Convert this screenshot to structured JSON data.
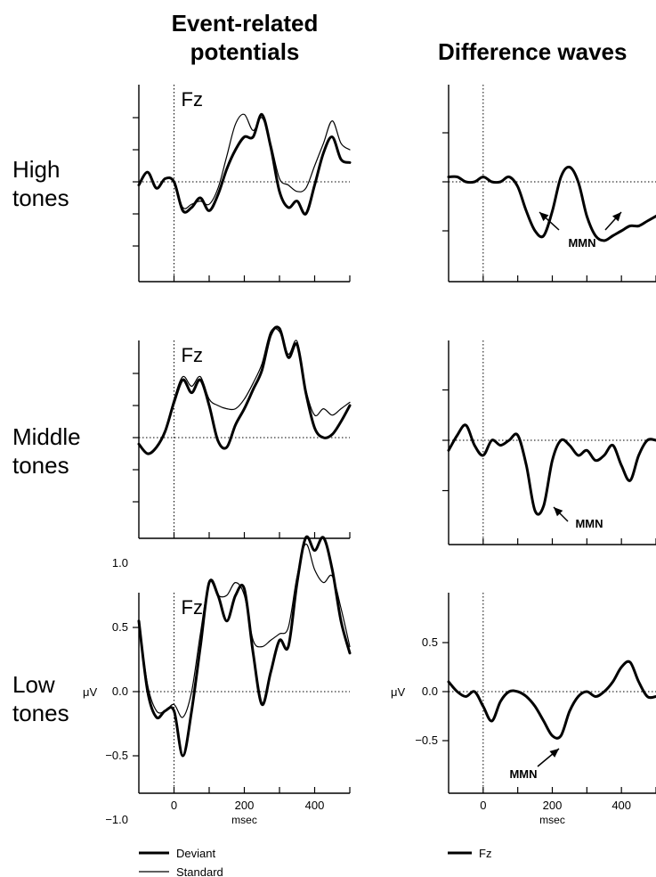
{
  "titles": {
    "erp_line1": "Event-related",
    "erp_line2": "potentials",
    "diff": "Difference waves"
  },
  "rows": [
    {
      "line1": "High",
      "line2": "tones"
    },
    {
      "line1": "Middle",
      "line2": "tones"
    },
    {
      "line1": "Low",
      "line2": "tones"
    }
  ],
  "electrode": "Fz",
  "mmn_label": "MMN",
  "axis": {
    "x_unit": "msec",
    "y_unit": "μV",
    "x_ticks": [
      "0",
      "200",
      "400"
    ],
    "erp_y_ticks": [
      "1.0",
      "0.5",
      "0.0",
      "−0.5",
      "−1.0"
    ],
    "diff_y_ticks": [
      "0.5",
      "0.0",
      "−0.5"
    ]
  },
  "legend": {
    "erp": [
      {
        "label": "Deviant",
        "style": "thick"
      },
      {
        "label": "Standard",
        "style": "thin"
      }
    ],
    "diff": [
      {
        "label": "Fz",
        "style": "thick"
      }
    ]
  },
  "chart_data": [
    {
      "type": "line",
      "panel": "High tones, event-related potentials",
      "electrode": "Fz",
      "xlabel": "",
      "ylabel": "",
      "xlim": [
        -100,
        500
      ],
      "series": [
        {
          "name": "Deviant",
          "style": "thick",
          "x": [
            -100,
            -75,
            -50,
            -25,
            0,
            25,
            50,
            75,
            100,
            125,
            150,
            175,
            200,
            225,
            250,
            275,
            300,
            325,
            350,
            375,
            400,
            425,
            450,
            475,
            500
          ],
          "y": [
            -0.05,
            0.15,
            -0.1,
            0.05,
            0.0,
            -0.45,
            -0.4,
            -0.25,
            -0.45,
            -0.2,
            0.2,
            0.5,
            0.7,
            0.7,
            1.05,
            0.55,
            -0.15,
            -0.4,
            -0.3,
            -0.5,
            -0.05,
            0.45,
            0.7,
            0.35,
            0.3
          ]
        },
        {
          "name": "Standard",
          "style": "thin",
          "x": [
            -100,
            -75,
            -50,
            -25,
            0,
            25,
            50,
            75,
            100,
            125,
            150,
            175,
            200,
            225,
            250,
            275,
            300,
            325,
            350,
            375,
            400,
            425,
            450,
            475,
            500
          ],
          "y": [
            -0.05,
            0.15,
            -0.1,
            0.05,
            0.0,
            -0.4,
            -0.35,
            -0.3,
            -0.35,
            -0.1,
            0.4,
            0.9,
            1.05,
            0.8,
            1.0,
            0.6,
            0.05,
            -0.05,
            -0.15,
            -0.1,
            0.25,
            0.6,
            0.95,
            0.6,
            0.5
          ]
        }
      ]
    },
    {
      "type": "line",
      "panel": "High tones, difference waves",
      "electrode": "Fz",
      "xlim": [
        -100,
        500
      ],
      "series": [
        {
          "name": "Fz",
          "style": "thick",
          "x": [
            -100,
            -75,
            -50,
            -25,
            0,
            25,
            50,
            75,
            100,
            125,
            150,
            175,
            200,
            225,
            250,
            275,
            300,
            325,
            350,
            375,
            400,
            425,
            450,
            475,
            500
          ],
          "y": [
            0.05,
            0.05,
            0.0,
            0.0,
            0.05,
            0.0,
            0.0,
            0.05,
            -0.05,
            -0.3,
            -0.5,
            -0.55,
            -0.3,
            0.05,
            0.15,
            0.0,
            -0.35,
            -0.55,
            -0.6,
            -0.55,
            -0.5,
            -0.45,
            -0.45,
            -0.4,
            -0.35
          ]
        }
      ],
      "annotations": [
        "MMN"
      ]
    },
    {
      "type": "line",
      "panel": "Middle tones, event-related potentials",
      "electrode": "Fz",
      "xlim": [
        -100,
        500
      ],
      "series": [
        {
          "name": "Deviant",
          "style": "thick",
          "x": [
            -100,
            -75,
            -50,
            -25,
            0,
            25,
            50,
            75,
            100,
            125,
            150,
            175,
            200,
            225,
            250,
            275,
            300,
            325,
            350,
            375,
            400,
            425,
            450,
            475,
            500
          ],
          "y": [
            -0.1,
            -0.25,
            -0.15,
            0.1,
            0.55,
            0.9,
            0.7,
            0.9,
            0.5,
            -0.05,
            -0.15,
            0.2,
            0.45,
            0.75,
            1.05,
            1.6,
            1.7,
            1.25,
            1.45,
            0.7,
            0.15,
            0.0,
            0.05,
            0.25,
            0.5
          ]
        },
        {
          "name": "Standard",
          "style": "thin",
          "x": [
            -100,
            -75,
            -50,
            -25,
            0,
            25,
            50,
            75,
            100,
            125,
            150,
            175,
            200,
            225,
            250,
            275,
            300,
            325,
            350,
            375,
            400,
            425,
            450,
            475,
            500
          ],
          "y": [
            -0.1,
            -0.25,
            -0.15,
            0.1,
            0.6,
            0.95,
            0.8,
            0.95,
            0.6,
            0.5,
            0.45,
            0.45,
            0.6,
            0.85,
            1.15,
            1.65,
            1.65,
            1.3,
            1.5,
            0.75,
            0.35,
            0.45,
            0.35,
            0.45,
            0.55
          ]
        }
      ]
    },
    {
      "type": "line",
      "panel": "Middle tones, difference waves",
      "electrode": "Fz",
      "xlim": [
        -100,
        500
      ],
      "series": [
        {
          "name": "Fz",
          "style": "thick",
          "x": [
            -100,
            -75,
            -50,
            -25,
            0,
            25,
            50,
            75,
            100,
            125,
            150,
            175,
            200,
            225,
            250,
            275,
            300,
            325,
            350,
            375,
            400,
            425,
            450,
            475,
            500
          ],
          "y": [
            -0.1,
            0.05,
            0.15,
            -0.05,
            -0.15,
            0.0,
            -0.05,
            0.0,
            0.05,
            -0.25,
            -0.7,
            -0.65,
            -0.2,
            0.0,
            -0.05,
            -0.15,
            -0.1,
            -0.2,
            -0.15,
            -0.05,
            -0.25,
            -0.4,
            -0.15,
            0.0,
            0.0
          ]
        }
      ],
      "annotations": [
        "MMN"
      ]
    },
    {
      "type": "line",
      "panel": "Low tones, event-related potentials",
      "electrode": "Fz",
      "xlim": [
        -100,
        500
      ],
      "ylim": [
        -1.5,
        1.5
      ],
      "series": [
        {
          "name": "Deviant",
          "style": "thick",
          "x": [
            -100,
            -75,
            -50,
            -25,
            0,
            25,
            50,
            75,
            100,
            125,
            150,
            175,
            200,
            225,
            250,
            275,
            300,
            325,
            350,
            375,
            400,
            425,
            450,
            475,
            500
          ],
          "y": [
            0.55,
            0.0,
            -0.2,
            -0.15,
            -0.15,
            -0.5,
            -0.15,
            0.35,
            0.85,
            0.75,
            0.55,
            0.75,
            0.8,
            0.3,
            -0.1,
            0.15,
            0.4,
            0.35,
            0.85,
            1.2,
            1.1,
            1.2,
            0.95,
            0.55,
            0.3
          ]
        },
        {
          "name": "Standard",
          "style": "thin",
          "x": [
            -100,
            -75,
            -50,
            -25,
            0,
            25,
            50,
            75,
            100,
            125,
            150,
            175,
            200,
            225,
            250,
            275,
            300,
            325,
            350,
            375,
            400,
            425,
            450,
            475,
            500
          ],
          "y": [
            0.55,
            0.05,
            -0.15,
            -0.15,
            -0.1,
            -0.2,
            0.0,
            0.45,
            0.85,
            0.75,
            0.75,
            0.85,
            0.75,
            0.4,
            0.35,
            0.4,
            0.45,
            0.5,
            0.9,
            1.15,
            0.95,
            0.85,
            0.9,
            0.65,
            0.35
          ]
        }
      ]
    },
    {
      "type": "line",
      "panel": "Low tones, difference waves",
      "electrode": "Fz",
      "xlim": [
        -100,
        500
      ],
      "ylim": [
        -1.0,
        1.0
      ],
      "series": [
        {
          "name": "Fz",
          "style": "thick",
          "x": [
            -100,
            -75,
            -50,
            -25,
            0,
            25,
            50,
            75,
            100,
            125,
            150,
            175,
            200,
            225,
            250,
            275,
            300,
            325,
            350,
            375,
            400,
            425,
            450,
            475,
            500
          ],
          "y": [
            0.1,
            0.0,
            -0.05,
            0.0,
            -0.15,
            -0.3,
            -0.1,
            0.0,
            0.0,
            -0.05,
            -0.15,
            -0.3,
            -0.45,
            -0.45,
            -0.2,
            -0.05,
            0.0,
            -0.05,
            0.0,
            0.1,
            0.25,
            0.3,
            0.1,
            -0.05,
            -0.05
          ]
        }
      ],
      "annotations": [
        "MMN"
      ]
    }
  ]
}
